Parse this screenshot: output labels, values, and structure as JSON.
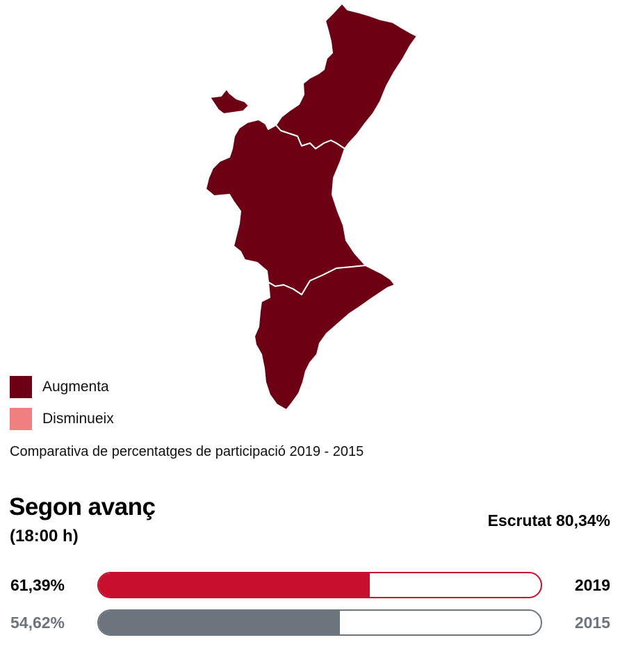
{
  "map": {
    "provinces": [
      {
        "id": "castello",
        "category": "augmenta"
      },
      {
        "id": "valencia",
        "category": "augmenta"
      },
      {
        "id": "alacant",
        "category": "augmenta"
      }
    ],
    "border_color": "#ffffff"
  },
  "legend": {
    "items": [
      {
        "key": "augmenta",
        "label": "Augmenta",
        "color": "#6e0014"
      },
      {
        "key": "disminueix",
        "label": "Disminueix",
        "color": "#f08080"
      }
    ]
  },
  "caption": "Comparativa de percentatges de participació 2019 - 2015",
  "turnout": {
    "title": "Segon avanç",
    "subtitle": "(18:00 h)",
    "scrutinized": "Escrutat 80,34%",
    "rows": [
      {
        "year": "2019",
        "label": "61,39%",
        "value": 61.39,
        "color": "#c8102e",
        "text_color": "#000000"
      },
      {
        "year": "2015",
        "label": "54,62%",
        "value": 54.62,
        "color": "#6c757d",
        "text_color": "#6c757d"
      }
    ]
  }
}
